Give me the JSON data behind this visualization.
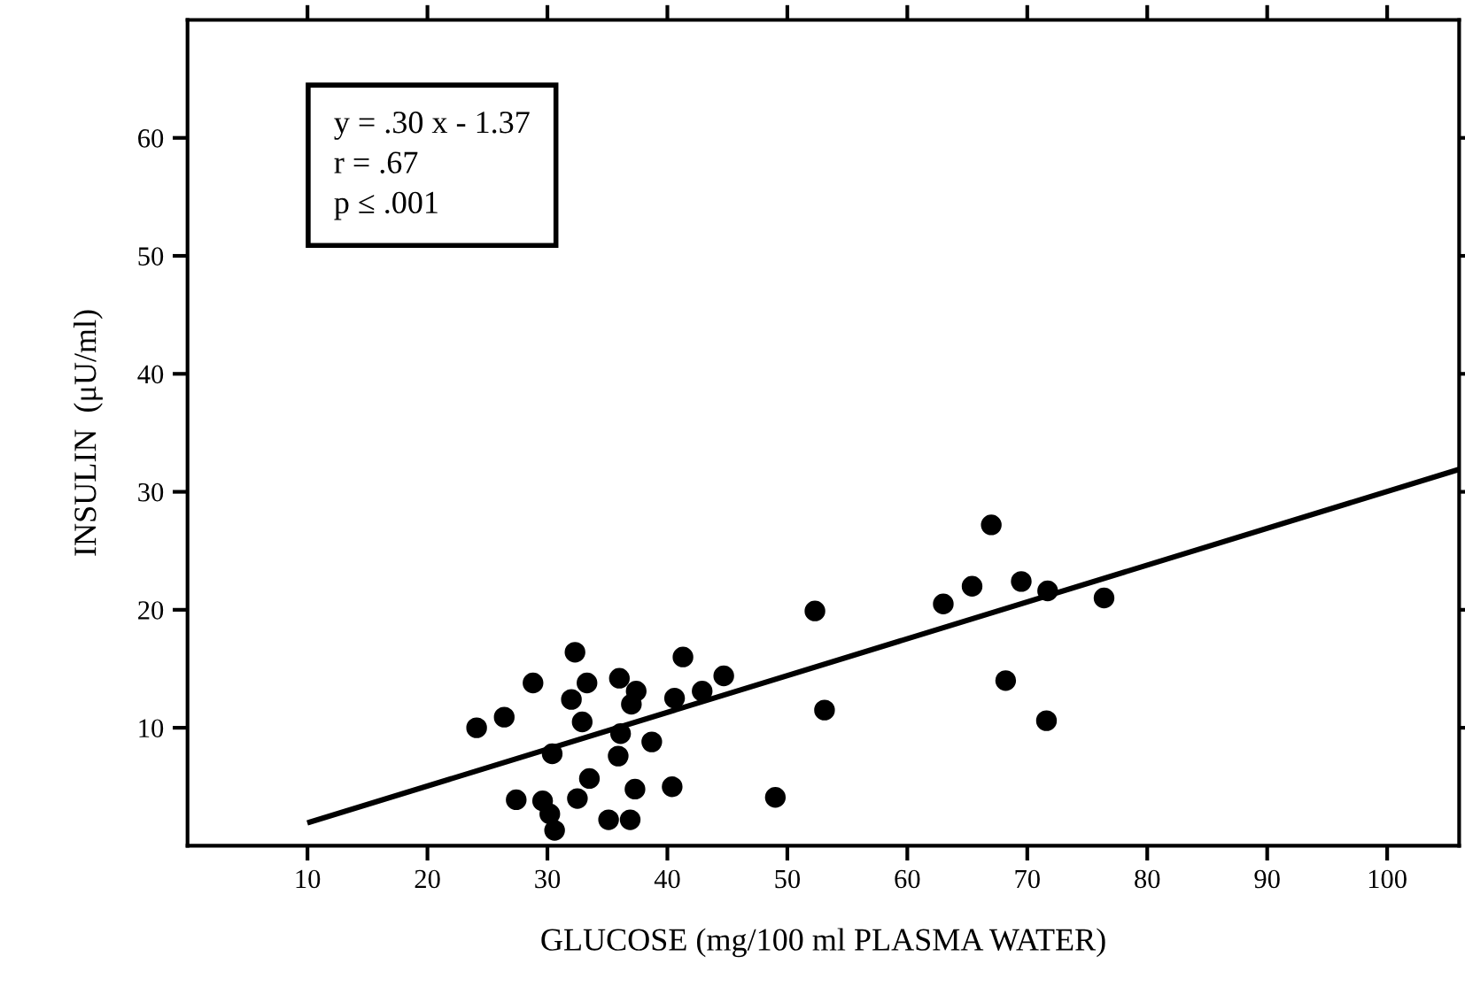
{
  "chart_data": {
    "type": "scatter",
    "xlabel": "GLUCOSE (mg/100 ml PLASMA WATER)",
    "ylabel": "INSULIN  (μU/ml)",
    "annotations": [
      "y = .30 x - 1.37\nr = .67\np ≤ .001"
    ],
    "xlim": [
      0,
      106
    ],
    "ylim": [
      0,
      70
    ],
    "xticks": [
      10,
      20,
      30,
      40,
      50,
      60,
      70,
      80,
      90,
      100
    ],
    "yticks": [
      10,
      20,
      30,
      40,
      50,
      60
    ],
    "grid": false,
    "legend": false,
    "marker": "circle",
    "series": [
      {
        "color": "#000000",
        "x": [
          24.1,
          26.4,
          28.8,
          32.3,
          33.3,
          32.0,
          32.9,
          36.0,
          37.4,
          37.0,
          36.1,
          38.7,
          35.9,
          30.4,
          33.5,
          27.4,
          29.6,
          30.2,
          30.6,
          32.5,
          35.1,
          36.9,
          37.3,
          40.4,
          40.6,
          41.3,
          42.9,
          44.7,
          49.0,
          52.3,
          53.1,
          63.0,
          65.4,
          67.0,
          69.5,
          71.7,
          76.4,
          68.2,
          71.6
        ],
        "values": [
          10.0,
          10.9,
          13.8,
          16.4,
          13.8,
          12.4,
          10.5,
          14.2,
          13.1,
          12.0,
          9.5,
          8.8,
          7.6,
          7.8,
          5.7,
          3.9,
          3.8,
          2.7,
          1.3,
          4.0,
          2.2,
          2.2,
          4.8,
          5.0,
          12.5,
          16.0,
          13.1,
          14.4,
          4.1,
          19.9,
          11.5,
          20.5,
          22.0,
          27.2,
          22.4,
          21.6,
          21.0,
          14.0,
          10.6
        ]
      },
      {
        "type": "line",
        "color": "#000000",
        "x": [
          10.2,
          106
        ],
        "values": [
          2.0,
          31.9
        ],
        "marker": "none",
        "line_style": "solid"
      }
    ]
  }
}
